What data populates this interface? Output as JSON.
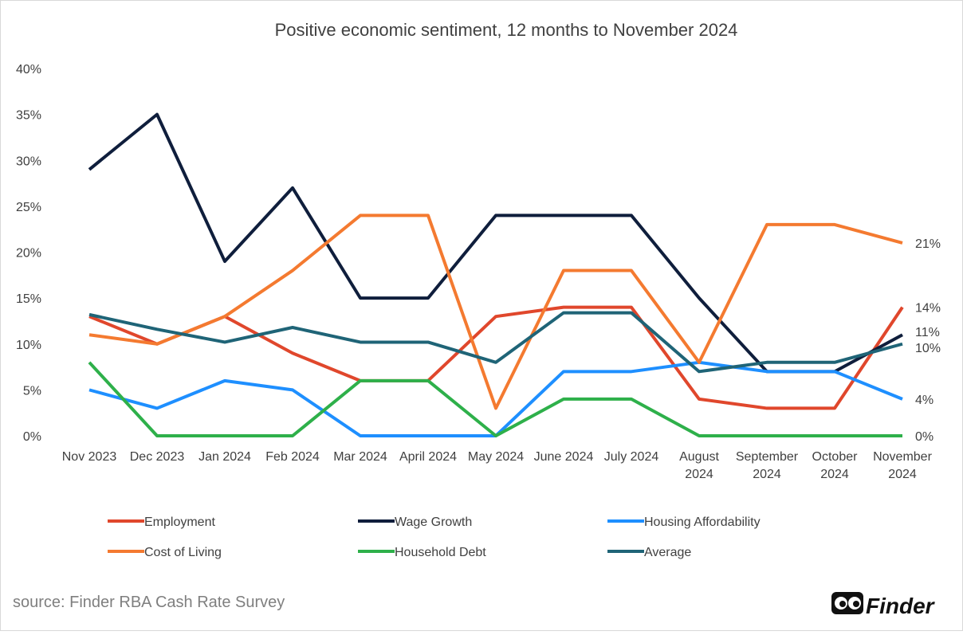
{
  "chart_data": {
    "type": "line",
    "title": "Positive economic sentiment, 12 months to November 2024",
    "categories": [
      [
        "Nov 2023"
      ],
      [
        "Dec 2023"
      ],
      [
        "Jan 2024"
      ],
      [
        "Feb 2024"
      ],
      [
        "Mar 2024"
      ],
      [
        "April 2024"
      ],
      [
        "May 2024"
      ],
      [
        "June 2024"
      ],
      [
        "July 2024"
      ],
      [
        "August",
        "2024"
      ],
      [
        "September",
        "2024"
      ],
      [
        "October",
        "2024"
      ],
      [
        "November",
        "2024"
      ]
    ],
    "ylim": [
      0,
      40
    ],
    "yticks": [
      0,
      5,
      10,
      15,
      20,
      25,
      30,
      35,
      40
    ],
    "ytick_format": "%",
    "grid": false,
    "legend_position": "bottom",
    "series": [
      {
        "name": "Employment",
        "color": "#e0472c",
        "values": [
          13,
          10,
          13,
          9,
          6,
          6,
          13,
          14,
          14,
          4,
          3,
          3,
          14
        ],
        "end_label": "14%"
      },
      {
        "name": "Wage Growth",
        "color": "#0f1e3c",
        "values": [
          29,
          35,
          19,
          27,
          15,
          15,
          24,
          24,
          24,
          15,
          7,
          7,
          11
        ],
        "end_label": "11%"
      },
      {
        "name": "Housing Affordability",
        "color": "#1e8fff",
        "values": [
          5,
          3,
          6,
          5,
          0,
          0,
          0,
          7,
          7,
          8,
          7,
          7,
          4
        ],
        "end_label": "4%"
      },
      {
        "name": "Cost of Living",
        "color": "#f47a30",
        "values": [
          11,
          10,
          13,
          18,
          24,
          24,
          3,
          18,
          18,
          8,
          23,
          23,
          21
        ],
        "end_label": "21%"
      },
      {
        "name": "Household Debt",
        "color": "#2eb04a",
        "values": [
          8,
          0,
          0,
          0,
          6,
          6,
          0,
          4,
          4,
          0,
          0,
          0,
          0
        ],
        "end_label": "0%"
      },
      {
        "name": "Average",
        "color": "#1f6477",
        "values": [
          13.2,
          11.6,
          10.2,
          11.8,
          10.2,
          10.2,
          8,
          13.4,
          13.4,
          7,
          8,
          8,
          10
        ],
        "end_label": "10%"
      }
    ]
  },
  "source": "source: Finder RBA Cash Rate Survey",
  "logo": {
    "text": "Finder"
  }
}
